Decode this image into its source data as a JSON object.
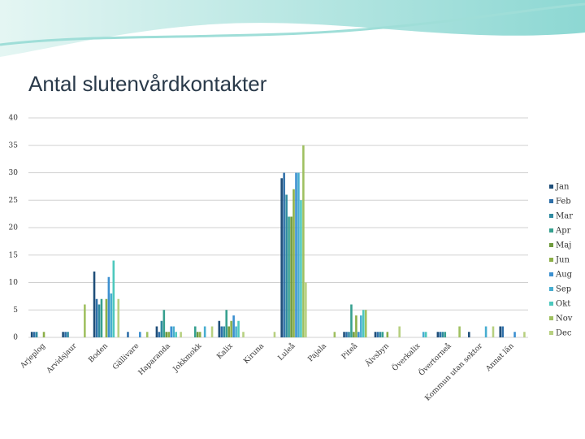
{
  "chart_data": {
    "type": "bar",
    "title": "Antal slutenvårdkontakter",
    "categories": [
      "Arjeplog",
      "Arvidsjaur",
      "Boden",
      "Gällivare",
      "Haparanda",
      "Jokkmokk",
      "Kalix",
      "Kiruna",
      "Luleå",
      "Pajala",
      "Piteå",
      "Älvsbyn",
      "Överkalix",
      "Övertorneå",
      "Kommun utan sektor",
      "Annat län"
    ],
    "series": [
      {
        "name": "Jan",
        "color": "#1f4e79",
        "values": [
          1,
          1,
          12,
          0,
          2,
          0,
          3,
          0,
          29,
          0,
          1,
          1,
          0,
          1,
          1,
          2
        ]
      },
      {
        "name": "Feb",
        "color": "#2e6fa8",
        "values": [
          1,
          1,
          7,
          1,
          1,
          0,
          2,
          0,
          30,
          0,
          1,
          1,
          0,
          1,
          0,
          2
        ]
      },
      {
        "name": "Mar",
        "color": "#2f8aa0",
        "values": [
          1,
          1,
          6,
          0,
          3,
          0,
          2,
          0,
          26,
          0,
          1,
          1,
          0,
          1,
          0,
          0
        ]
      },
      {
        "name": "Apr",
        "color": "#36a08f",
        "values": [
          0,
          0,
          7,
          0,
          5,
          2,
          5,
          0,
          22,
          0,
          6,
          1,
          0,
          1,
          0,
          0
        ]
      },
      {
        "name": "Maj",
        "color": "#6e9a3c",
        "values": [
          0,
          0,
          0,
          0,
          1,
          1,
          2,
          0,
          22,
          0,
          1,
          0,
          0,
          0,
          0,
          0
        ]
      },
      {
        "name": "Jun",
        "color": "#8caf48",
        "values": [
          1,
          0,
          7,
          0,
          1,
          1,
          3,
          0,
          27,
          0,
          4,
          1,
          0,
          0,
          0,
          0
        ]
      },
      {
        "name": "Aug",
        "color": "#3b8fd0",
        "values": [
          0,
          0,
          11,
          1,
          2,
          0,
          4,
          0,
          30,
          0,
          1,
          0,
          0,
          0,
          0,
          1
        ]
      },
      {
        "name": "Sep",
        "color": "#47add0",
        "values": [
          0,
          0,
          8,
          0,
          2,
          2,
          2,
          0,
          30,
          0,
          4,
          0,
          1,
          0,
          2,
          0
        ]
      },
      {
        "name": "Okt",
        "color": "#4dc8bd",
        "values": [
          0,
          0,
          14,
          0,
          1,
          0,
          3,
          0,
          25,
          0,
          5,
          0,
          1,
          0,
          0,
          0
        ]
      },
      {
        "name": "Nov",
        "color": "#9fc060",
        "values": [
          0,
          6,
          0,
          1,
          0,
          0,
          0,
          0,
          35,
          1,
          5,
          0,
          0,
          2,
          0,
          0
        ]
      },
      {
        "name": "Dec",
        "color": "#b7d080",
        "values": [
          0,
          0,
          7,
          0,
          1,
          2,
          1,
          1,
          10,
          0,
          0,
          2,
          0,
          0,
          2,
          1
        ]
      }
    ],
    "ylim": [
      0,
      40
    ],
    "yticks": [
      0,
      5,
      10,
      15,
      20,
      25,
      30,
      35,
      40
    ],
    "grid": true,
    "legend": "right"
  }
}
